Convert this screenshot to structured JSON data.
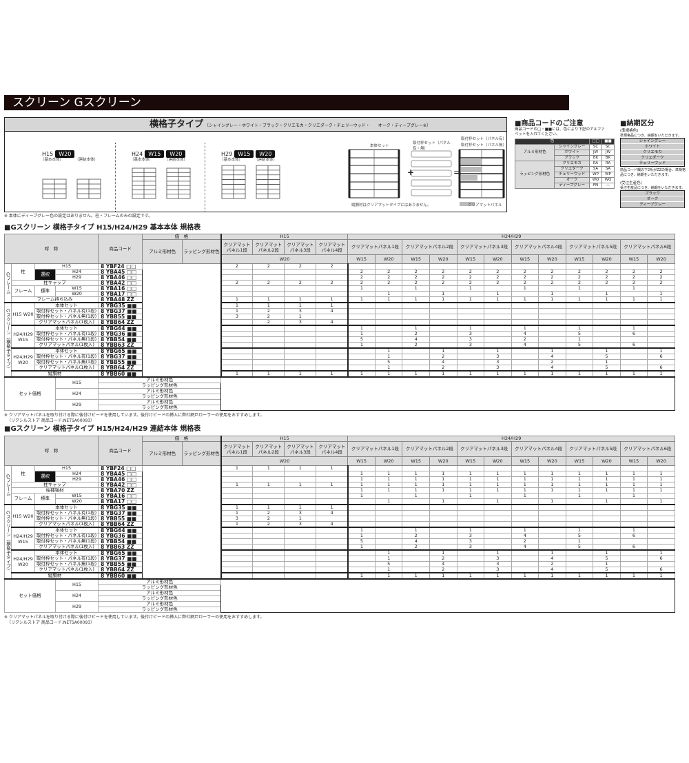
{
  "title": "スクリーン Gスクリーン",
  "type_section": {
    "title": "横格子タイプ",
    "colors_note": "〔シャイングレー・ホワイト・ブラック・クリエモカ・クリエダーク・チェリーウッド・　　オーク・ディープグレー※〕",
    "groups": [
      {
        "h": "H15",
        "widths": [
          "W20"
        ],
        "labels": [
          "（基本本体）",
          "（連結本体）"
        ]
      },
      {
        "h": "H24",
        "widths": [
          "W15",
          "W20"
        ],
        "labels": [
          "（基本本体）",
          "（連結本体）"
        ]
      },
      {
        "h": "H29",
        "widths": [
          "W15",
          "W20"
        ],
        "labels": [
          "（基本本体）",
          "（連結本体）"
        ]
      }
    ],
    "diagram": {
      "body_set": "本体セット",
      "frame_set": "取付枠セット（パネル有・無）",
      "panel_on": "取付枠セット（パネル有）",
      "panel_off": "取付枠セット（パネル無）",
      "note": "縦胴材はクリアマットタイプにはありません。",
      "clear_panel": "クリアマットパネル",
      "plus": "+",
      "equals": "="
    },
    "note": "※ 本体にディープグレー色の設定はありません。柱・フレームのみの設定です。"
  },
  "code_notice": {
    "title": "■商品コードのご注意",
    "text": "商品コードの□・■■には、色により下記のアルファベットを入れてください。",
    "headers": [
      "色",
      "□□",
      "■■"
    ],
    "groups": [
      {
        "name": "アルミ形材色",
        "rows": [
          [
            "シャイングレー",
            "SC",
            "SC"
          ],
          [
            "ホワイト",
            "JW",
            "JW"
          ],
          [
            "ブラック",
            "BK",
            "BK"
          ]
        ]
      },
      {
        "name": "ラッピング形材色",
        "rows": [
          [
            "クリエモカ",
            "RA",
            "RA"
          ],
          [
            "クリエダーク",
            "SA",
            "SA"
          ],
          [
            "チェリーウッド",
            "WP",
            "WP"
          ],
          [
            "オーク",
            "WQ",
            "WQ"
          ],
          [
            "ディープグレー",
            "FN",
            "—"
          ]
        ]
      }
    ]
  },
  "delivery": {
    "title": "■納期区分",
    "semi_label": "(準規格色)",
    "semi_text": "準規格品につき、納期をいただきます。",
    "semi_colors": [
      "シャイングレー",
      "ホワイト",
      "クリエモカ",
      "クリエダーク",
      "チェリーウッド"
    ],
    "zz_text": "商品コード欄の下2桁がZZの場合、準規格品につき、納期をいただきます。",
    "order_label": "(受注生産色)",
    "order_text": "受注生産品につき、納期をいただきます。",
    "order_colors": [
      "ブラック",
      "オーク",
      "ディープグレー"
    ]
  },
  "spec_header": {
    "name": "呼　称",
    "code": "商品コード",
    "price": "価　格",
    "alu": "アルミ形材色",
    "wrap": "ラッピング形材色",
    "h15": "H15",
    "h24": "H24/H29",
    "h15_panels": [
      "クリアマット パネル1段",
      "クリアマット パネル2段",
      "クリアマット パネル3段",
      "クリアマット パネル4段"
    ],
    "h24_panels": [
      "クリアマットパネル1段",
      "クリアマットパネル2段",
      "クリアマットパネル3段",
      "クリアマットパネル4段",
      "クリアマットパネル5段",
      "クリアマットパネル6段"
    ],
    "w15": "W15",
    "w20": "W20"
  },
  "labels": {
    "group_frame": "Gフレーム",
    "pillar": "柱",
    "h15": "H15",
    "select": "選択",
    "h24": "H24",
    "h29": "H29",
    "cap": "柱キャップ",
    "reinforce": "柱補強材",
    "frame": "フレーム",
    "std": "標準",
    "w15": "W15",
    "w20": "W20",
    "frame_extra": "フレーム持ち込み",
    "group_screen": "Gスクリーン（横格子タイプ）",
    "g1": "H15 W20",
    "g2": "H24/H29 W15",
    "g3": "H24/H29 W20",
    "items": [
      "本体セット",
      "取付枠セット・パネル有(1段)",
      "取付枠セット・パネル無(1段)",
      "クリアマットパネル(1枚入)"
    ],
    "tate": "縦胴材",
    "set_price": "セット価格",
    "set_heights": [
      "H15",
      "H24",
      "H29"
    ],
    "alu": "アルミ形材色",
    "wrap": "ラッピング形材色"
  },
  "table1": {
    "title": "■Gスクリーン 横格子タイプ H15/H24/H29 基本本体 規格表",
    "rows": [
      {
        "code": "8 YBF24",
        "sfx": "□□",
        "v": [
          "2",
          "2",
          "2",
          "2",
          "",
          "",
          "",
          "",
          "",
          "",
          "",
          "",
          "",
          "",
          "",
          ""
        ]
      },
      {
        "code": "8 YBA45",
        "sfx": "□□",
        "v": [
          "",
          "",
          "",
          "",
          "2",
          "2",
          "2",
          "2",
          "2",
          "2",
          "2",
          "2",
          "2",
          "2",
          "2",
          "2"
        ]
      },
      {
        "code": "8 YBA46",
        "sfx": "□□",
        "v": [
          "",
          "",
          "",
          "",
          "2",
          "2",
          "2",
          "2",
          "2",
          "2",
          "2",
          "2",
          "2",
          "2",
          "2",
          "2"
        ]
      },
      {
        "code": "8 YBA42",
        "sfx": "□□",
        "v": [
          "2",
          "2",
          "2",
          "2",
          "2",
          "2",
          "2",
          "2",
          "2",
          "2",
          "2",
          "2",
          "2",
          "2",
          "2",
          "2"
        ]
      },
      {
        "code": "8 YBA16",
        "sfx": "□□",
        "v": [
          "",
          "",
          "",
          "",
          "1",
          "",
          "1",
          "",
          "1",
          "",
          "1",
          "",
          "1",
          "",
          "1",
          ""
        ]
      },
      {
        "code": "8 YBA17",
        "sfx": "□□",
        "v": [
          "",
          "",
          "",
          "",
          "",
          "1",
          "",
          "1",
          "",
          "1",
          "",
          "1",
          "",
          "1",
          "",
          "1"
        ]
      },
      {
        "code": "8 YBA48",
        "sfx": "ZZ",
        "v": [
          "1",
          "1",
          "1",
          "1",
          "1",
          "1",
          "1",
          "1",
          "1",
          "1",
          "1",
          "1",
          "1",
          "1",
          "1",
          "1"
        ]
      },
      {
        "code": "8 YBG35",
        "sfx": "■■",
        "v": [
          "1",
          "1",
          "1",
          "1",
          "",
          "",
          "",
          "",
          "",
          "",
          "",
          "",
          "",
          "",
          "",
          ""
        ]
      },
      {
        "code": "8 YBG37",
        "sfx": "■■",
        "v": [
          "1",
          "2",
          "3",
          "4",
          "",
          "",
          "",
          "",
          "",
          "",
          "",
          "",
          "",
          "",
          "",
          ""
        ]
      },
      {
        "code": "8 YBB55",
        "sfx": "■■",
        "v": [
          "3",
          "2",
          "1",
          "",
          "",
          "",
          "",
          "",
          "",
          "",
          "",
          "",
          "",
          "",
          "",
          ""
        ]
      },
      {
        "code": "8 YBB64",
        "sfx": "ZZ",
        "v": [
          "",
          "2",
          "3",
          "4",
          "",
          "",
          "",
          "",
          "",
          "",
          "",
          "",
          "",
          "",
          "",
          ""
        ]
      },
      {
        "code": "8 YBG64",
        "sfx": "■■",
        "v": [
          "",
          "",
          "",
          "",
          "1",
          "",
          "1",
          "",
          "1",
          "",
          "1",
          "",
          "1",
          "",
          "1",
          ""
        ]
      },
      {
        "code": "8 YBG36",
        "sfx": "■■",
        "v": [
          "",
          "",
          "",
          "",
          "1",
          "",
          "2",
          "",
          "3",
          "",
          "4",
          "",
          "5",
          "",
          "6",
          ""
        ]
      },
      {
        "code": "8 YBB54",
        "sfx": "■■",
        "v": [
          "",
          "",
          "",
          "",
          "5",
          "",
          "4",
          "",
          "3",
          "",
          "2",
          "",
          "1",
          "",
          "",
          ""
        ]
      },
      {
        "code": "8 YBB63",
        "sfx": "ZZ",
        "v": [
          "",
          "",
          "",
          "",
          "1",
          "",
          "2",
          "",
          "3",
          "",
          "4",
          "",
          "5",
          "",
          "6",
          ""
        ]
      },
      {
        "code": "8 YBG65",
        "sfx": "■■",
        "v": [
          "",
          "",
          "",
          "",
          "",
          "1",
          "",
          "1",
          "",
          "1",
          "",
          "1",
          "",
          "1",
          "",
          "1"
        ]
      },
      {
        "code": "8 YBG37",
        "sfx": "■■",
        "v": [
          "",
          "",
          "",
          "",
          "",
          "1",
          "",
          "2",
          "",
          "3",
          "",
          "4",
          "",
          "5",
          "",
          "6"
        ]
      },
      {
        "code": "8 YBB55",
        "sfx": "■■",
        "v": [
          "",
          "",
          "",
          "",
          "",
          "5",
          "",
          "4",
          "",
          "3",
          "",
          "2",
          "",
          "1",
          "",
          ""
        ]
      },
      {
        "code": "8 YBB64",
        "sfx": "ZZ",
        "v": [
          "",
          "",
          "",
          "",
          "",
          "1",
          "",
          "2",
          "",
          "3",
          "",
          "4",
          "",
          "5",
          "",
          "6"
        ]
      },
      {
        "code": "8 YBB60",
        "sfx": "■■",
        "v": [
          "1",
          "1",
          "1",
          "1",
          "1",
          "1",
          "1",
          "1",
          "1",
          "1",
          "1",
          "1",
          "1",
          "1",
          "1",
          "1"
        ]
      }
    ],
    "footnote": "※ クリアマットパネルを取り付ける際に後付けビードを使用しています。後付けビードの挿入に弊社網戸ローラーの使用をおすすめします。",
    "footnote2": "（リクシルストア 商品コード:NETSA00093）"
  },
  "table2": {
    "title": "■Gスクリーン 横格子タイプ H15/H24/H29 連結本体 規格表",
    "rows": [
      {
        "code": "8 YBF24",
        "sfx": "□□",
        "v": [
          "1",
          "1",
          "1",
          "1",
          "",
          "",
          "",
          "",
          "",
          "",
          "",
          "",
          "",
          "",
          "",
          ""
        ]
      },
      {
        "code": "8 YBA45",
        "sfx": "□□",
        "v": [
          "",
          "",
          "",
          "",
          "1",
          "1",
          "1",
          "1",
          "1",
          "1",
          "1",
          "1",
          "1",
          "1",
          "1",
          "1"
        ]
      },
      {
        "code": "8 YBA46",
        "sfx": "□□",
        "v": [
          "",
          "",
          "",
          "",
          "1",
          "1",
          "1",
          "1",
          "1",
          "1",
          "1",
          "1",
          "1",
          "1",
          "1",
          "1"
        ]
      },
      {
        "code": "8 YBA42",
        "sfx": "□□",
        "v": [
          "1",
          "1",
          "1",
          "1",
          "1",
          "1",
          "1",
          "1",
          "1",
          "1",
          "1",
          "1",
          "1",
          "1",
          "1",
          "1"
        ]
      },
      {
        "code": "8 YBA70",
        "sfx": "ZZ",
        "v": [
          "",
          "",
          "",
          "",
          "1",
          "1",
          "1",
          "1",
          "1",
          "1",
          "1",
          "1",
          "1",
          "1",
          "1",
          "1"
        ]
      },
      {
        "code": "8 YBA16",
        "sfx": "□□",
        "v": [
          "",
          "",
          "",
          "",
          "1",
          "",
          "1",
          "",
          "1",
          "",
          "1",
          "",
          "1",
          "",
          "1",
          ""
        ]
      },
      {
        "code": "8 YBA17",
        "sfx": "□□",
        "v": [
          "",
          "",
          "",
          "",
          "",
          "1",
          "",
          "1",
          "",
          "1",
          "",
          "1",
          "",
          "1",
          "",
          "1"
        ]
      },
      {
        "code": "8 YBG35",
        "sfx": "■■",
        "v": [
          "1",
          "1",
          "1",
          "1",
          "",
          "",
          "",
          "",
          "",
          "",
          "",
          "",
          "",
          "",
          "",
          ""
        ]
      },
      {
        "code": "8 YBG37",
        "sfx": "■■",
        "v": [
          "1",
          "2",
          "3",
          "4",
          "",
          "",
          "",
          "",
          "",
          "",
          "",
          "",
          "",
          "",
          "",
          ""
        ]
      },
      {
        "code": "8 YBB55",
        "sfx": "■■",
        "v": [
          "3",
          "2",
          "1",
          "",
          "",
          "",
          "",
          "",
          "",
          "",
          "",
          "",
          "",
          "",
          "",
          ""
        ]
      },
      {
        "code": "8 YBB64",
        "sfx": "ZZ",
        "v": [
          "1",
          "2",
          "3",
          "4",
          "",
          "",
          "",
          "",
          "",
          "",
          "",
          "",
          "",
          "",
          "",
          ""
        ]
      },
      {
        "code": "8 YBG64",
        "sfx": "■■",
        "v": [
          "",
          "",
          "",
          "",
          "1",
          "",
          "1",
          "",
          "1",
          "",
          "1",
          "",
          "1",
          "",
          "1",
          ""
        ]
      },
      {
        "code": "8 YBG36",
        "sfx": "■■",
        "v": [
          "",
          "",
          "",
          "",
          "1",
          "",
          "2",
          "",
          "3",
          "",
          "4",
          "",
          "5",
          "",
          "6",
          ""
        ]
      },
      {
        "code": "8 YBB54",
        "sfx": "■■",
        "v": [
          "",
          "",
          "",
          "",
          "5",
          "",
          "4",
          "",
          "3",
          "",
          "2",
          "",
          "1",
          "",
          "",
          ""
        ]
      },
      {
        "code": "8 YBB63",
        "sfx": "ZZ",
        "v": [
          "",
          "",
          "",
          "",
          "1",
          "",
          "2",
          "",
          "3",
          "",
          "4",
          "",
          "5",
          "",
          "6",
          ""
        ]
      },
      {
        "code": "8 YBG65",
        "sfx": "■■",
        "v": [
          "",
          "",
          "",
          "",
          "",
          "1",
          "",
          "1",
          "",
          "1",
          "",
          "1",
          "",
          "1",
          "",
          "1"
        ]
      },
      {
        "code": "8 YBG37",
        "sfx": "■■",
        "v": [
          "",
          "",
          "",
          "",
          "",
          "1",
          "",
          "2",
          "",
          "3",
          "",
          "4",
          "",
          "5",
          "",
          "6"
        ]
      },
      {
        "code": "8 YBB55",
        "sfx": "■■",
        "v": [
          "",
          "",
          "",
          "",
          "",
          "5",
          "",
          "4",
          "",
          "3",
          "",
          "2",
          "",
          "1",
          "",
          ""
        ]
      },
      {
        "code": "8 YBB64",
        "sfx": "ZZ",
        "v": [
          "",
          "",
          "",
          "",
          "",
          "1",
          "",
          "2",
          "",
          "3",
          "",
          "4",
          "",
          "5",
          "",
          "6"
        ]
      },
      {
        "code": "8 YBB60",
        "sfx": "■■",
        "v": [
          "",
          "",
          "",
          "",
          "1",
          "1",
          "1",
          "1",
          "1",
          "1",
          "1",
          "1",
          "1",
          "1",
          "1",
          "1"
        ]
      }
    ],
    "footnote": "※ クリアマットパネルを取り付ける際に後付けビードを使用しています。後付けビードの挿入に弊社網戸ローラーの使用をおすすめします。",
    "footnote2": "（リクシルストア 商品コード:NETSA00093）"
  },
  "colors": {
    "title_bar": "#1a0a0a",
    "header_grey": "#dddddd",
    "badge": "#111111"
  }
}
